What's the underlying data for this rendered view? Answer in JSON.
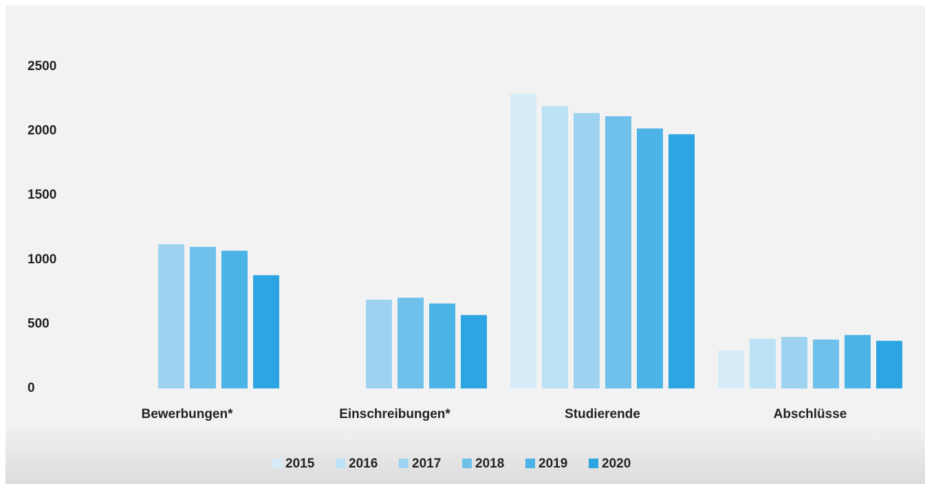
{
  "chart_data": {
    "type": "bar",
    "categories": [
      "Bewerbungen*",
      "Einschreibungen*",
      "Studierende",
      "Abschlüsse"
    ],
    "series": [
      {
        "name": "2015",
        "color": "#d6ecf8",
        "values": [
          null,
          null,
          2290,
          295
        ]
      },
      {
        "name": "2016",
        "color": "#bde2f5",
        "values": [
          null,
          null,
          2195,
          385
        ]
      },
      {
        "name": "2017",
        "color": "#9dd3f0",
        "values": [
          1120,
          690,
          2140,
          400
        ]
      },
      {
        "name": "2018",
        "color": "#6fc0ea",
        "values": [
          1100,
          705,
          2115,
          380
        ]
      },
      {
        "name": "2019",
        "color": "#4cb3e6",
        "values": [
          1070,
          660,
          2020,
          415
        ]
      },
      {
        "name": "2020",
        "color": "#2ca5e2",
        "values": [
          880,
          570,
          1975,
          370
        ]
      }
    ],
    "ylim": [
      0,
      2500
    ],
    "yticks": [
      0,
      500,
      1000,
      1500,
      2000,
      2500
    ],
    "grid": false,
    "legend": "bottom"
  }
}
